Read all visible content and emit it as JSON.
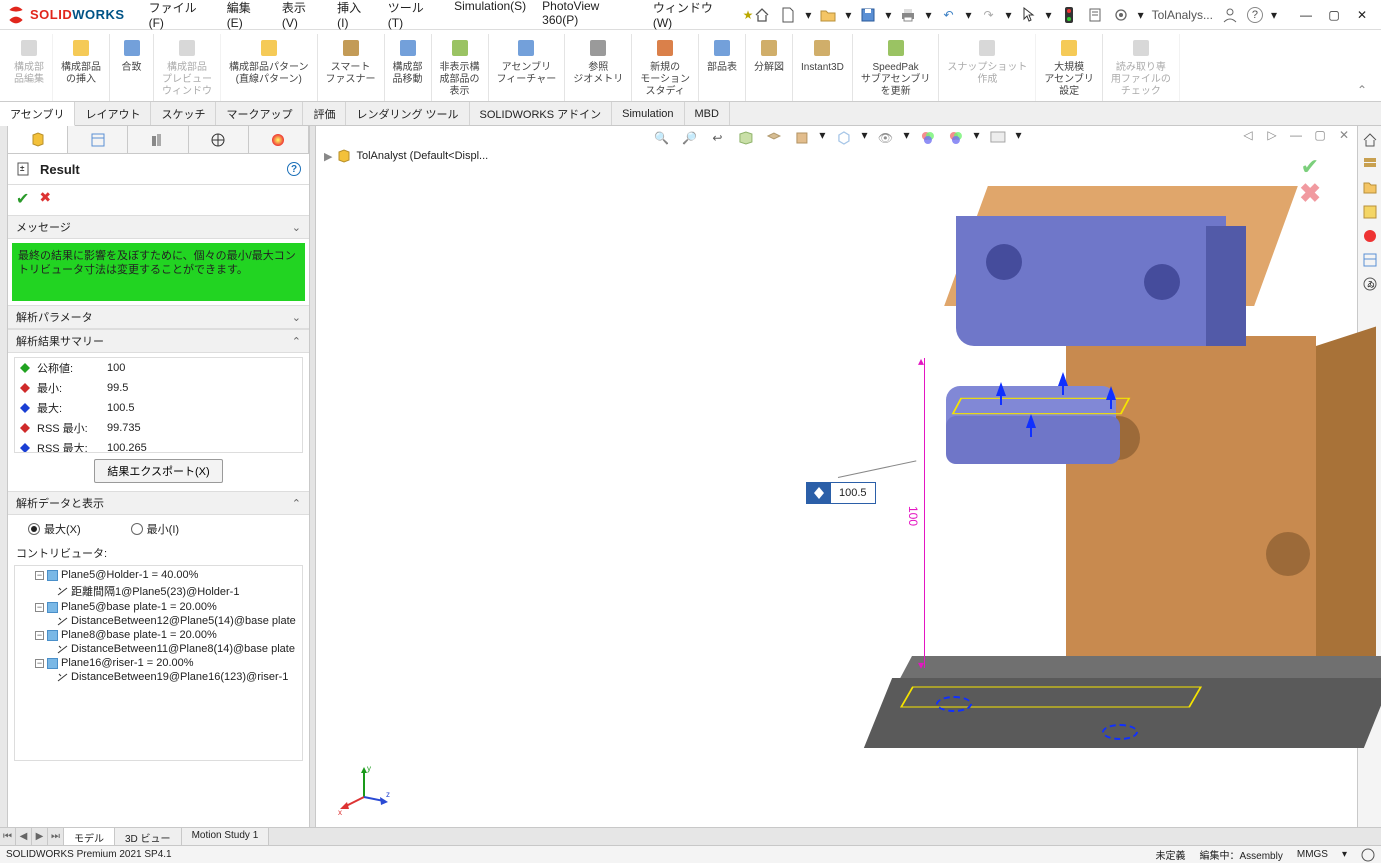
{
  "app": {
    "name_red": "SOLID",
    "name_blue": "WORKS"
  },
  "menus": [
    "ファイル(F)",
    "編集(E)",
    "表示(V)",
    "挿入(I)",
    "ツール(T)",
    "Simulation(S)",
    "PhotoView 360(P)",
    "ウィンドウ(W)"
  ],
  "titlebar": {
    "doc_label": "TolAnalys..."
  },
  "ribbon": [
    {
      "label": "構成部\n品編集",
      "dim": true
    },
    {
      "label": "構成部品\nの挿入"
    },
    {
      "label": "合致"
    },
    {
      "label": "構成部品\nプレビュー\nウィンドウ",
      "dim": true
    },
    {
      "label": "構成部品パターン\n(直線パターン)"
    },
    {
      "label": "スマート\nファスナー"
    },
    {
      "label": "構成部\n品移動"
    },
    {
      "label": "非表示構\n成部品の\n表示"
    },
    {
      "label": "アセンブリ\nフィーチャー"
    },
    {
      "label": "参照\nジオメトリ"
    },
    {
      "label": "新規の\nモーション\nスタディ"
    },
    {
      "label": "部品表"
    },
    {
      "label": "分解図"
    },
    {
      "label": "Instant3D"
    },
    {
      "label": "SpeedPak\nサブアセンブリ\nを更新"
    },
    {
      "label": "スナップショット\n作成",
      "dim": true
    },
    {
      "label": "大規模\nアセンブリ\n設定"
    },
    {
      "label": "読み取り専\n用ファイルの\nチェック",
      "dim": true
    }
  ],
  "subtabs": [
    "アセンブリ",
    "レイアウト",
    "スケッチ",
    "マークアップ",
    "評価",
    "レンダリング ツール",
    "SOLIDWORKS アドイン",
    "Simulation",
    "MBD"
  ],
  "subtabs_active": 0,
  "breadcrumb": "TolAnalyst  (Default<Displ...",
  "panel": {
    "title": "Result",
    "msg_header": "メッセージ",
    "msg_body": "最終の結果に影響を及ぼすために、個々の最小/最大コントリビュータ寸法は変更することができます。",
    "params_header": "解析パラメータ",
    "summary_header": "解析結果サマリー",
    "summary": [
      {
        "k": "公称値:",
        "v": "100",
        "color": "#21a321"
      },
      {
        "k": "最小:",
        "v": "99.5",
        "color": "#d02a2a"
      },
      {
        "k": "最大:",
        "v": "100.5",
        "color": "#1a3fd4"
      },
      {
        "k": "RSS 最小:",
        "v": "99.735",
        "color": "#d02a2a"
      },
      {
        "k": "RSS 最大:",
        "v": "100.265",
        "color": "#1a3fd4"
      }
    ],
    "export_btn": "結果エクスポート(X)",
    "data_header": "解析データと表示",
    "radio_max": "最大(X)",
    "radio_min": "最小(I)",
    "radio_selected": "max",
    "contrib_label": "コントリビュータ:",
    "tree": [
      {
        "lvl": 1,
        "type": "grp",
        "txt": "Plane5@Holder-1 = 40.00%"
      },
      {
        "lvl": 2,
        "type": "dim",
        "txt": "距離間隔1@Plane5(23)@Holder-1"
      },
      {
        "lvl": 1,
        "type": "grp",
        "txt": "Plane5@base plate-1 = 20.00%"
      },
      {
        "lvl": 2,
        "type": "dim",
        "txt": "DistanceBetween12@Plane5(14)@base plate"
      },
      {
        "lvl": 1,
        "type": "grp",
        "txt": "Plane8@base plate-1 = 20.00%"
      },
      {
        "lvl": 2,
        "type": "dim",
        "txt": "DistanceBetween11@Plane8(14)@base plate"
      },
      {
        "lvl": 1,
        "type": "grp",
        "txt": "Plane16@riser-1 = 20.00%"
      },
      {
        "lvl": 2,
        "type": "dim",
        "txt": "DistanceBetween19@Plane16(123)@riser-1"
      }
    ]
  },
  "viewport": {
    "callout_value": "100.5",
    "dim_value": "100"
  },
  "model_colors": {
    "wood": "#e0a66b",
    "wood_dark": "#c88a4f",
    "wood_side": "#a87238",
    "blue": "#6f77c9",
    "blue_dark": "#525aa8",
    "blue_light": "#8188d6",
    "base": "#5a5a5a",
    "base_top": "#707070",
    "hole": "#9c6a39",
    "bluehole": "#454c9c",
    "highlight": "#f5e400",
    "arrow": "#1030ff",
    "dim": "#e415c2"
  },
  "bottom_tabs": [
    "モデル",
    "3D ビュー",
    "Motion Study 1"
  ],
  "bottom_active": 0,
  "statusbar": {
    "left": "SOLIDWORKS Premium 2021 SP4.1",
    "def": "未定義",
    "edit": "編集中：Assembly",
    "units": "MMGS"
  }
}
